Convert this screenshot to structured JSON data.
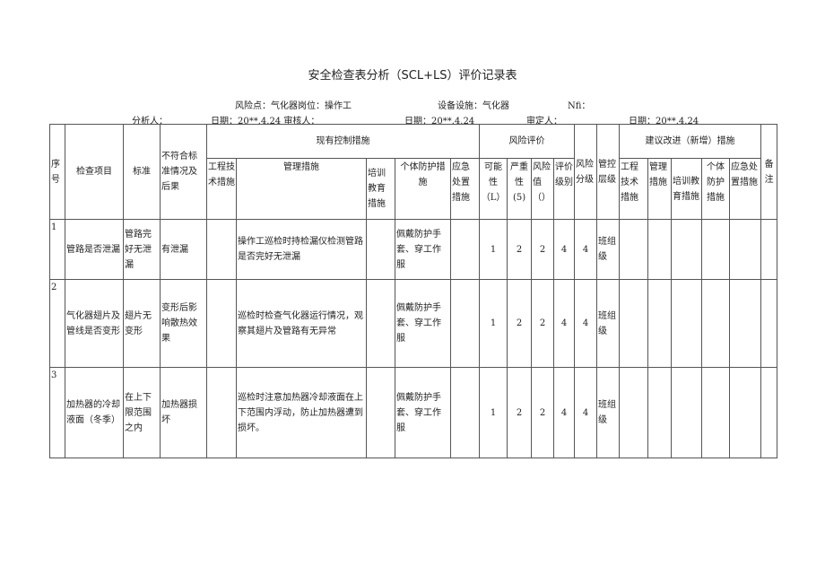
{
  "title": "安全检查表分析（SCL+LS）评价记录表",
  "meta": {
    "risk_point": "风险点：气化器岗位：操作工",
    "equipment": "设备设施：气化器",
    "no": "Nfi：",
    "analyst": "分析人：",
    "analyst_date": "日期：20**.4.24 审核人：",
    "reviewer_date": "日期：20**.4.24",
    "approver": "审定人：",
    "approver_date": "日期：20**.4.24"
  },
  "headers": {
    "seq": "序号",
    "item": "检查项目",
    "standard": "标准",
    "nonconform": "不符合标准情况及后果",
    "existing": "现有控制措施",
    "eng": "工程技术措施",
    "mgmt": "管理措施",
    "train": "培训教育措施",
    "ppe": "个体防护措施",
    "emerg": "应急处置措施",
    "risk_eval": "风险评价",
    "L": "可能性（L）",
    "S": "严重性(5)",
    "R": "风险值（）",
    "level": "评价级别",
    "risk_grade": "风险分级",
    "ctrl_level": "管控层级",
    "suggest": "建议改进（新增）措施",
    "s_eng": "工程技术措施",
    "s_mgmt": "管理措施",
    "s_train": "培训教育措施",
    "s_ppe": "个体防护措施",
    "s_emerg": "应急处置措施",
    "remark": "备注"
  },
  "rows": [
    {
      "seq": "1",
      "item": "管路是否泄漏",
      "standard": "管路完好无泄漏",
      "nonconform": "有泄漏",
      "eng": "",
      "mgmt": "操作工巡检时持检漏仪检测管路是否完好无泄漏",
      "train": "",
      "ppe": "佩戴防护手套、穿工作服",
      "emerg": "",
      "L": "1",
      "S": "2",
      "R": "2",
      "level": "4",
      "grade": "4",
      "ctrl": "班组级"
    },
    {
      "seq": "2",
      "item": "气化器翅片及管线是否变形",
      "standard": "翅片无变形",
      "nonconform": "变形后影响散热效果",
      "eng": "",
      "mgmt": "巡检时检查气化器运行情况，观察其翅片及管路有无异常",
      "train": "",
      "ppe": "佩戴防护手套、穿工作服",
      "emerg": "",
      "L": "1",
      "S": "2",
      "R": "2",
      "level": "4",
      "grade": "4",
      "ctrl": "班组级"
    },
    {
      "seq": "3",
      "item": "加热器的冷却液面（冬季）",
      "standard": "在上下限范围之内",
      "nonconform": "加热器损坏",
      "eng": "",
      "mgmt": "巡检时注意加热器冷却液面在上下范围内浮动，防止加热器遭到损坏。",
      "train": "",
      "ppe": "佩戴防护手套、穿工作服",
      "emerg": "",
      "L": "1",
      "S": "2",
      "R": "2",
      "level": "4",
      "grade": "4",
      "ctrl": "班组级"
    }
  ]
}
